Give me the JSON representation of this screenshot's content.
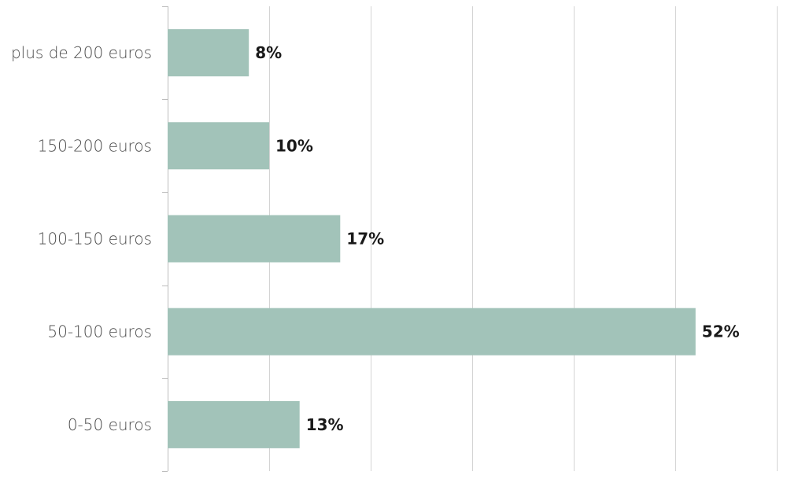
{
  "chart_data": {
    "type": "bar",
    "orientation": "horizontal",
    "categories": [
      "plus de 200 euros",
      "150-200 euros",
      "100-150 euros",
      "50-100 euros",
      "0-50 euros"
    ],
    "values": [
      8,
      10,
      17,
      52,
      13
    ],
    "value_labels": [
      "8%",
      "10%",
      "17%",
      "52%",
      "13%"
    ],
    "xlim": [
      0,
      60
    ],
    "x_gridlines": [
      0,
      10,
      20,
      30,
      40,
      50,
      60
    ],
    "grid": true,
    "bar_color": "#a2c3b9",
    "title": "",
    "xlabel": "",
    "ylabel": ""
  }
}
